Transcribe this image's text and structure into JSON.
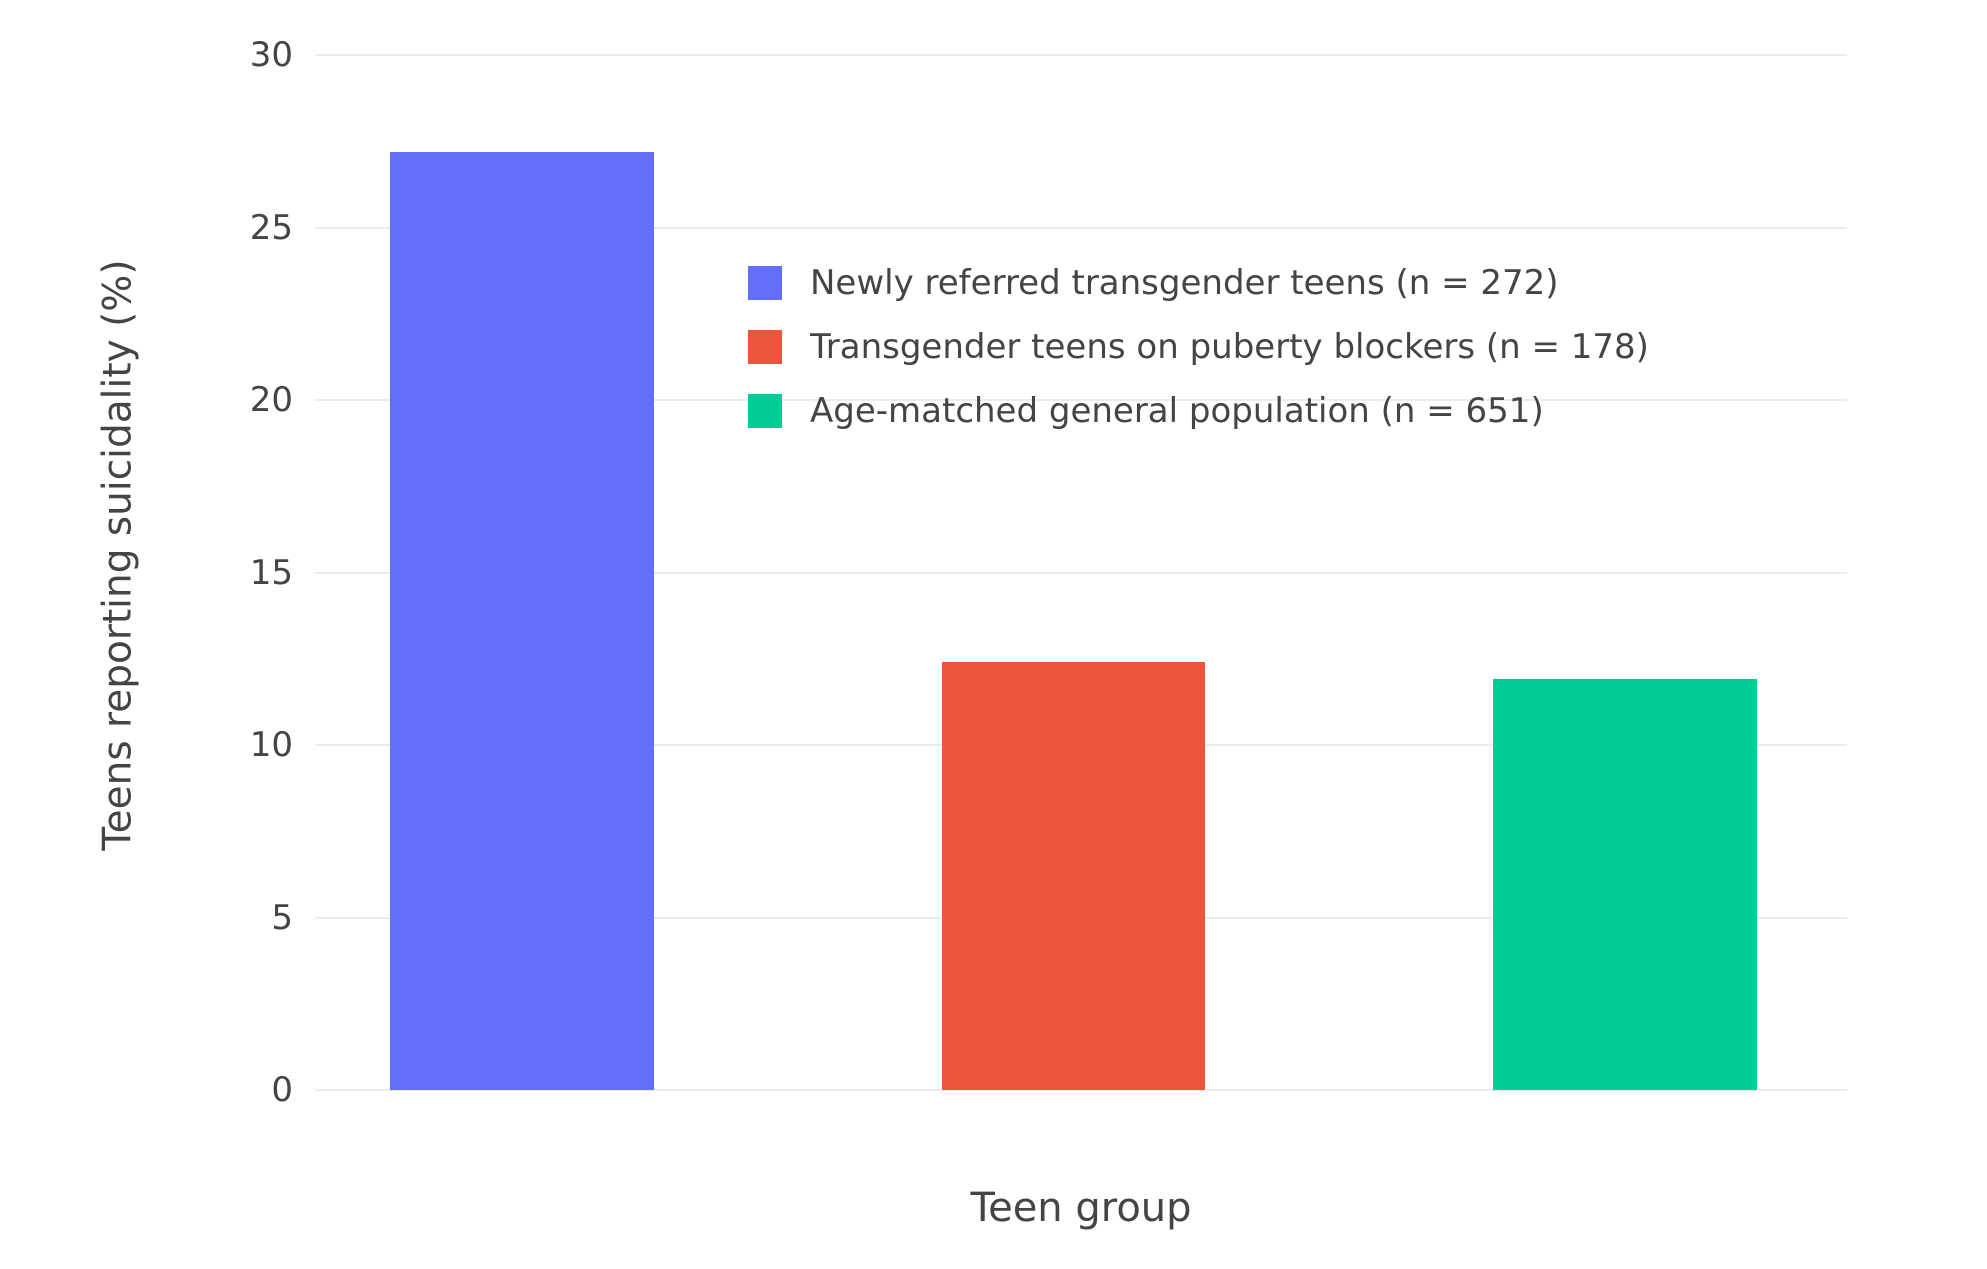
{
  "chart_data": {
    "type": "bar",
    "categories": [
      "Newly referred transgender teens (n = 272)",
      "Transgender teens on puberty blockers (n = 178)",
      "Age-matched general population (n = 651)"
    ],
    "values": [
      27.2,
      12.4,
      11.9
    ],
    "colors": [
      "#636EFA",
      "#EF553B",
      "#00CC96"
    ],
    "title": "",
    "xlabel": "Teen group",
    "ylabel": "Teens reporting suicidality (%)",
    "ylim": [
      0,
      30
    ],
    "yticks": [
      0,
      5,
      10,
      15,
      20,
      25,
      30
    ],
    "grid": true,
    "legend_position": "inside-upper-center",
    "background": "#ffffff",
    "gridline_color": "#e9edf1"
  },
  "axes": {
    "xlabel": "Teen group",
    "ylabel": "Teens reporting suicidality (%)"
  },
  "legend": {
    "items": [
      {
        "label": "Newly referred transgender teens (n = 272)",
        "color": "#636EFA"
      },
      {
        "label": "Transgender teens on puberty blockers (n = 178)",
        "color": "#EF553B"
      },
      {
        "label": "Age-matched general population (n = 651)",
        "color": "#00CC96"
      }
    ]
  }
}
